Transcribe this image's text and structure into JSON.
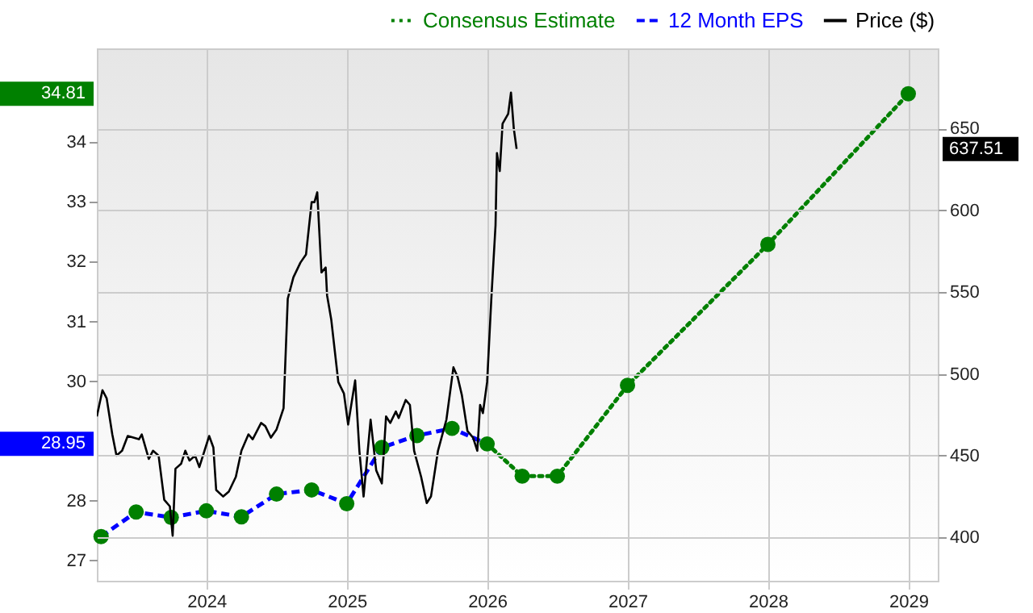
{
  "chart_data": {
    "type": "line",
    "xlim": [
      2023.22,
      2029.21
    ],
    "xticks": [
      2024,
      2025,
      2026,
      2027,
      2028,
      2029
    ],
    "ylim": [
      26.66,
      35.57
    ],
    "yticks": [
      27,
      28,
      30,
      31,
      32,
      33,
      34,
      {
        "value": 34.81,
        "label": "34.81"
      },
      {
        "value": 28.95,
        "label": "28.95"
      }
    ],
    "y2lim": [
      373.5,
      699
    ],
    "y2ticks": [
      400,
      450,
      500,
      550,
      600,
      650,
      {
        "value": 637.51,
        "label": "637.51"
      }
    ],
    "grid": true,
    "legend": "top right",
    "series": [
      {
        "name": "Consensus Estimate",
        "color": "#008000",
        "line_style": "dotted",
        "x": [
          2026.0,
          2026.25,
          2026.5,
          2027.0,
          2028.0,
          2029.0
        ],
        "values": [
          28.95,
          28.41,
          28.41,
          29.93,
          32.29,
          34.81
        ]
      },
      {
        "name": "12 Month EPS",
        "color": "#0000ff",
        "line_style": "dashed",
        "x": [
          2023.25,
          2023.5,
          2023.75,
          2024.0,
          2024.25,
          2024.5,
          2024.75,
          2025.0,
          2025.25,
          2025.5,
          2025.75,
          2026.0
        ],
        "values": [
          27.4,
          27.81,
          27.72,
          27.83,
          27.73,
          28.11,
          28.18,
          27.95,
          28.89,
          29.09,
          29.21,
          28.95
        ]
      },
      {
        "name": "Price ($)",
        "color": "#000000",
        "line_style": "solid",
        "axis": "y2",
        "x": [
          2023.22,
          2023.26,
          2023.29,
          2023.33,
          2023.36,
          2023.4,
          2023.44,
          2023.52,
          2023.54,
          2023.59,
          2023.62,
          2023.66,
          2023.7,
          2023.74,
          2023.76,
          2023.78,
          2023.82,
          2023.85,
          2023.88,
          2023.92,
          2023.95,
          2024.02,
          2024.05,
          2024.07,
          2024.12,
          2024.16,
          2024.21,
          2024.25,
          2024.3,
          2024.33,
          2024.39,
          2024.42,
          2024.46,
          2024.5,
          2024.55,
          2024.58,
          2024.62,
          2024.67,
          2024.71,
          2024.75,
          2024.77,
          2024.79,
          2024.82,
          2024.85,
          2024.86,
          2024.87,
          2024.89,
          2024.94,
          2024.98,
          2025.01,
          2025.06,
          2025.09,
          2025.12,
          2025.17,
          2025.21,
          2025.25,
          2025.28,
          2025.31,
          2025.35,
          2025.37,
          2025.42,
          2025.45,
          2025.48,
          2025.53,
          2025.57,
          2025.6,
          2025.65,
          2025.71,
          2025.76,
          2025.79,
          2025.82,
          2025.86,
          2025.9,
          2025.93,
          2025.95,
          2025.97,
          2026.0,
          2026.03,
          2026.06,
          2026.07,
          2026.09,
          2026.11,
          2026.15,
          2026.17,
          2026.19,
          2026.21
        ],
        "values": [
          474,
          490,
          485,
          463,
          450,
          453,
          462,
          460,
          463,
          448,
          453,
          450,
          423,
          419,
          401,
          442,
          445,
          453,
          447,
          450,
          443,
          462,
          455,
          429,
          425,
          428,
          437,
          453,
          463,
          460,
          470,
          468,
          461,
          466,
          479,
          546,
          559,
          568,
          573,
          605,
          605,
          611,
          562,
          565,
          548,
          543,
          533,
          495,
          488,
          469,
          496,
          453,
          425,
          472,
          441,
          433,
          474,
          470,
          477,
          473,
          484,
          481,
          453,
          437,
          421,
          425,
          453,
          472,
          504,
          498,
          487,
          465,
          461,
          453,
          481,
          476,
          495,
          546,
          591,
          635,
          624,
          653,
          659,
          672,
          650,
          637.51
        ]
      },
      {
        "type": "scatter",
        "color": "#008000",
        "marker": "circle",
        "x": [
          2023.25,
          2023.5,
          2023.75,
          2024.0,
          2024.25,
          2024.5,
          2024.75,
          2025.0,
          2025.25,
          2025.5,
          2025.75,
          2026.0,
          2026.25,
          2026.5,
          2027.0,
          2028.0,
          2029.0
        ],
        "values": [
          27.4,
          27.81,
          27.72,
          27.83,
          27.73,
          28.11,
          28.18,
          27.95,
          28.89,
          29.09,
          29.21,
          28.95,
          28.41,
          28.41,
          29.93,
          32.29,
          34.81
        ]
      }
    ]
  }
}
